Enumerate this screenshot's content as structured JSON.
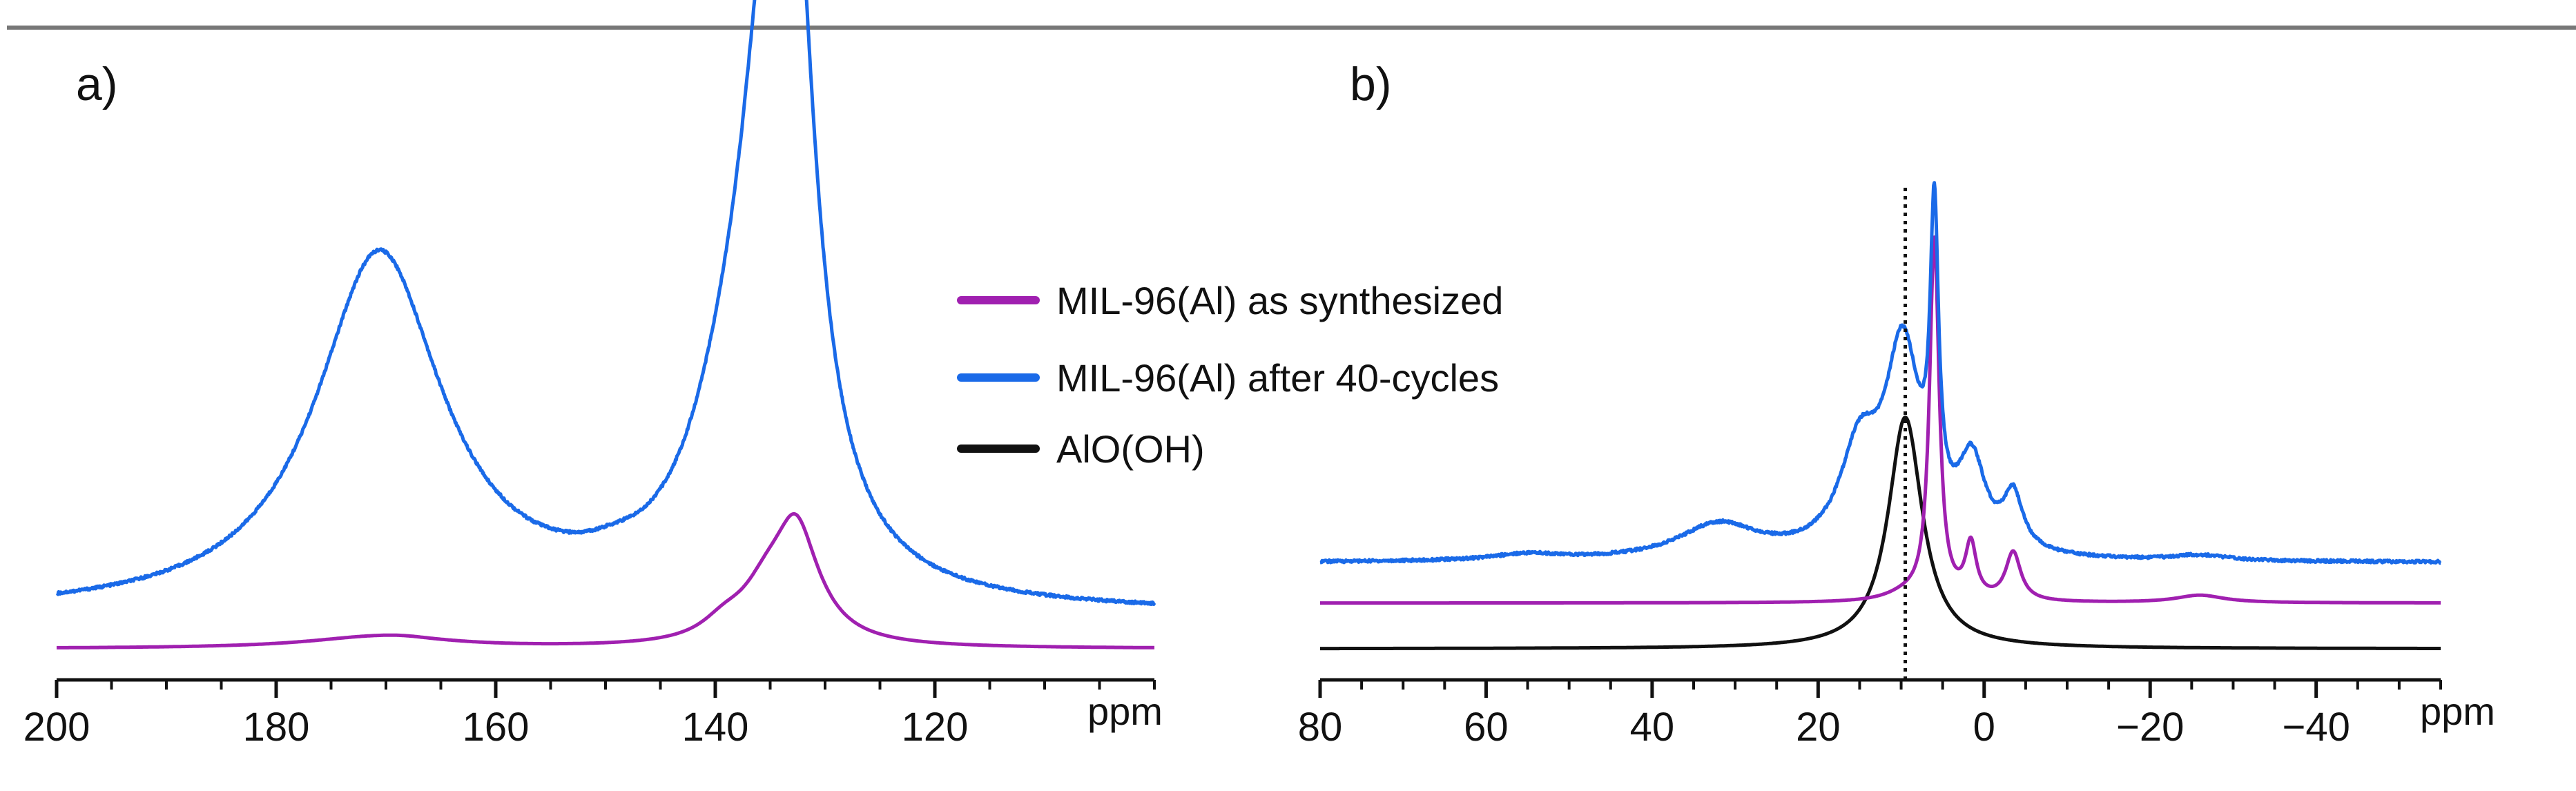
{
  "chart_data": [
    {
      "panel": "a)",
      "type": "line",
      "xlabel": "ppm",
      "xlim": [
        200,
        100
      ],
      "x_reversed": true,
      "major_ticks": [
        200,
        180,
        160,
        140,
        120
      ],
      "tick_labels": [
        "200",
        "180",
        "160",
        "140",
        "120"
      ],
      "series": [
        {
          "name": "MIL-96(Al) as synthesized",
          "color": "#a020b0",
          "baseline": 0,
          "peaks": [
            [
              170.6,
              0.22,
              16
            ],
            [
              168.5,
              0.03,
              6
            ],
            [
              139.2,
              0.3,
              5
            ],
            [
              135.2,
              0.95,
              6
            ],
            [
              133.2,
              0.28,
              4
            ],
            [
              132.6,
              1.1,
              4
            ],
            [
              131.8,
              0.65,
              6
            ]
          ]
        },
        {
          "name": "MIL-96(Al) after 40-cycles",
          "color": "#1a6ae8",
          "baseline": 0.65,
          "peaks": [
            [
              170.6,
              6.8,
              14
            ],
            [
              139.2,
              1.65,
              9
            ],
            [
              135.2,
              8.0,
              7
            ],
            [
              133.1,
              7.8,
              5
            ],
            [
              132.6,
              1.4,
              4
            ],
            [
              149.3,
              0.14,
              6
            ]
          ]
        }
      ]
    },
    {
      "panel": "b)",
      "type": "line",
      "xlabel": "ppm",
      "xlim": [
        80,
        -55
      ],
      "x_reversed": true,
      "major_ticks": [
        80,
        60,
        40,
        20,
        0,
        -20,
        -40
      ],
      "tick_labels": [
        "80",
        "60",
        "40",
        "20",
        "0",
        "−20",
        "−40"
      ],
      "reference_line_ppm": 9.5,
      "series": [
        {
          "name": "AlO(OH)",
          "color": "#111111",
          "baseline": 0,
          "peaks": [
            [
              9.5,
              4.3,
              5.0
            ]
          ]
        },
        {
          "name": "MIL-96(Al) as synthesized",
          "color": "#a020b0",
          "baseline": 0.85,
          "peaks": [
            [
              6.0,
              6.7,
              1.4
            ],
            [
              1.6,
              1.0,
              1.6
            ],
            [
              -3.5,
              0.9,
              2.2
            ],
            [
              9.5,
              0.12,
              6
            ],
            [
              -26,
              0.14,
              7
            ]
          ]
        },
        {
          "name": "MIL-96(Al) after 40-cycles",
          "color": "#1a6ae8",
          "baseline": 1.6,
          "peaks": [
            [
              6.0,
              5.4,
              1.2
            ],
            [
              9.8,
              3.7,
              5.2
            ],
            [
              15,
              1.8,
              5.8
            ],
            [
              1.5,
              1.6,
              4.0
            ],
            [
              -3.5,
              1.0,
              2.8
            ],
            [
              32,
              0.65,
              12
            ],
            [
              55,
              0.12,
              10
            ],
            [
              -26,
              0.1,
              8
            ]
          ]
        }
      ]
    }
  ],
  "legend": [
    {
      "label": "MIL-96(Al) as synthesized",
      "color": "#a020b0"
    },
    {
      "label": "MIL-96(Al) after 40-cycles",
      "color": "#1a6ae8"
    },
    {
      "label": "AlO(OH)",
      "color": "#111111"
    }
  ]
}
